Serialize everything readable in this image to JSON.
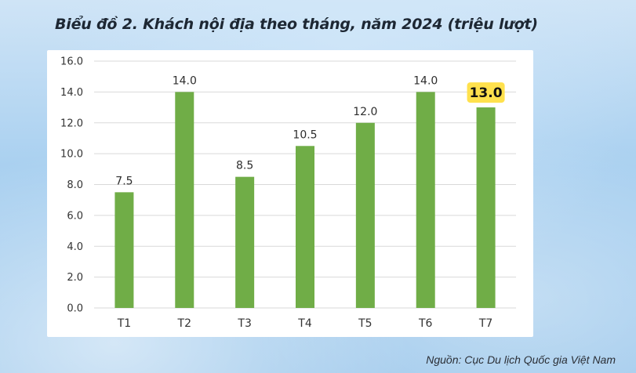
{
  "title": "Biểu đồ 2. Khách nội địa theo tháng, năm 2024 (triệu lượt)",
  "source": "Nguồn: Cục Du lịch Quốc gia Việt Nam",
  "chart_data": {
    "type": "bar",
    "categories": [
      "T1",
      "T2",
      "T3",
      "T4",
      "T5",
      "T6",
      "T7"
    ],
    "values": [
      7.5,
      14.0,
      8.5,
      10.5,
      12.0,
      14.0,
      13.0
    ],
    "value_labels": [
      "7.5",
      "14.0",
      "8.5",
      "10.5",
      "12.0",
      "14.0",
      "13.0"
    ],
    "highlighted_index": 6,
    "ylim": [
      0,
      16
    ],
    "yticks": [
      "0.0",
      "2.0",
      "4.0",
      "6.0",
      "8.0",
      "10.0",
      "12.0",
      "14.0",
      "16.0"
    ],
    "ytick_values": [
      0,
      2,
      4,
      6,
      8,
      10,
      12,
      14,
      16
    ],
    "grid": true,
    "colors": {
      "bar": "#70ad47",
      "grid": "#d9d9d9",
      "highlight_bg": "#ffe14d"
    }
  }
}
